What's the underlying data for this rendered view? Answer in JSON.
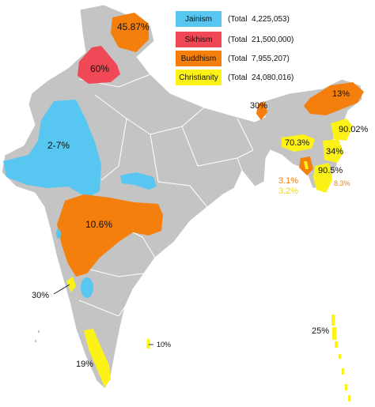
{
  "legend": [
    {
      "name": "Jainism",
      "total": "(Total  4,225,053)",
      "color": "#57c6f1"
    },
    {
      "name": "Sikhism",
      "total": "(Total  21,500,000)",
      "color": "#f04856"
    },
    {
      "name": "Buddhism",
      "total": "(Total  7,955,207)",
      "color": "#f57f0c"
    },
    {
      "name": "Christianity",
      "total": "(Total  24,080,016)",
      "color": "#fdf217"
    }
  ],
  "labels": {
    "jk": "45.87%",
    "punjab": "60%",
    "gujarat": "2-7%",
    "maharashtra": "10.6%",
    "goa": "30%",
    "kerala": "19%",
    "tamil_nadu": "10%",
    "sikkim": "30%",
    "arunachal": "13%",
    "nagaland": "90.02%",
    "meghalaya": "70.3%",
    "manipur": "34%",
    "mizoram": "90.5%",
    "tripura_buddhism": "3.1%",
    "tripura_christianity": "3.2%",
    "mizoram_buddhism": "8.3%",
    "andaman": "25%"
  },
  "colors": {
    "land": "#c4c4c4",
    "border": "#ffffff",
    "jainism": "#57c6f1",
    "sikhism": "#f04856",
    "buddhism": "#f57f0c",
    "christianity": "#fdf217"
  }
}
